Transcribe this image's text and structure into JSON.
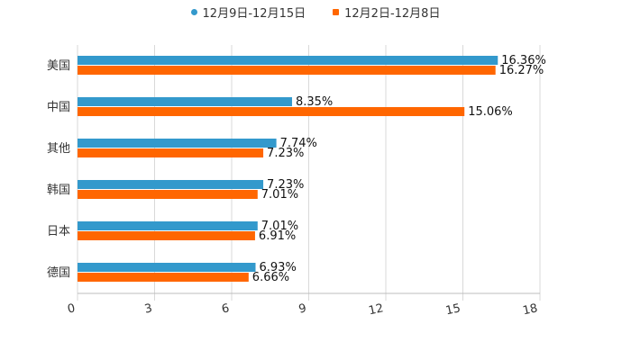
{
  "chart_data": {
    "type": "bar",
    "orientation": "horizontal",
    "title": "",
    "xlabel": "",
    "ylabel": "",
    "categories": [
      "美国",
      "中国",
      "其他",
      "韩国",
      "日本",
      "德国"
    ],
    "series": [
      {
        "name": "12月9日-12月15日",
        "color": "#3399cc",
        "marker": "circle",
        "values": [
          16.36,
          8.35,
          7.74,
          7.23,
          7.01,
          6.93
        ],
        "labels": [
          "16.36%",
          "8.35%",
          "7.74%",
          "7.23%",
          "7.01%",
          "6.93%"
        ]
      },
      {
        "name": "12月2日-12月8日",
        "color": "#ff6600",
        "marker": "square",
        "values": [
          16.27,
          15.06,
          7.23,
          7.01,
          6.91,
          6.66
        ],
        "labels": [
          "16.27%",
          "15.06%",
          "7.23%",
          "7.01%",
          "6.91%",
          "6.66%"
        ]
      }
    ],
    "xlim": [
      0,
      18
    ],
    "xticks": [
      "0",
      "3",
      "6",
      "9",
      "12",
      "15",
      "18"
    ],
    "grid": true,
    "legend_position": "top-center"
  }
}
